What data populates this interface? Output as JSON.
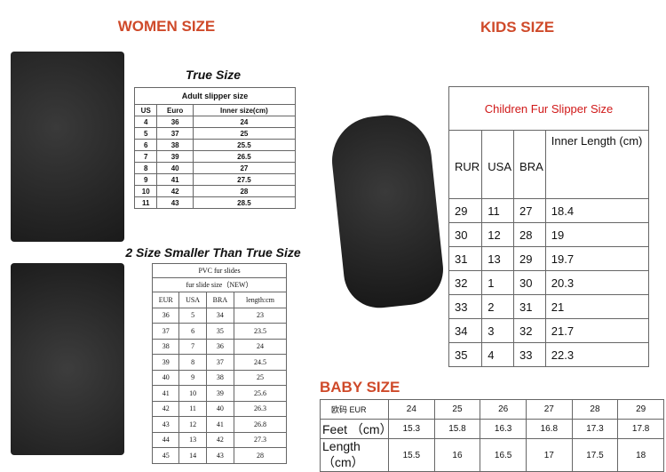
{
  "women": {
    "title": "WOMEN SIZE",
    "true_size_label": "True Size",
    "smaller_label": "2 Size Smaller Than True Size",
    "adult_table": {
      "caption": "Adult slipper size",
      "headers": [
        "US",
        "Euro",
        "Inner size(cm)"
      ],
      "rows": [
        [
          "4",
          "36",
          "24"
        ],
        [
          "5",
          "37",
          "25"
        ],
        [
          "6",
          "38",
          "25.5"
        ],
        [
          "7",
          "39",
          "26.5"
        ],
        [
          "8",
          "40",
          "27"
        ],
        [
          "9",
          "41",
          "27.5"
        ],
        [
          "10",
          "42",
          "28"
        ],
        [
          "11",
          "43",
          "28.5"
        ]
      ]
    },
    "pvc_table": {
      "caption": "PVC fur slides",
      "subcaption": "fur slide size（NEW）",
      "headers": [
        "EUR",
        "USA",
        "BRA",
        "length:cm"
      ],
      "rows": [
        [
          "36",
          "5",
          "34",
          "23"
        ],
        [
          "37",
          "6",
          "35",
          "23.5"
        ],
        [
          "38",
          "7",
          "36",
          "24"
        ],
        [
          "39",
          "8",
          "37",
          "24.5"
        ],
        [
          "40",
          "9",
          "38",
          "25"
        ],
        [
          "41",
          "10",
          "39",
          "25.6"
        ],
        [
          "42",
          "11",
          "40",
          "26.3"
        ],
        [
          "43",
          "12",
          "41",
          "26.8"
        ],
        [
          "44",
          "13",
          "42",
          "27.3"
        ],
        [
          "45",
          "14",
          "43",
          "28"
        ]
      ]
    }
  },
  "kids": {
    "title": "KIDS SIZE",
    "table": {
      "caption": "Children Fur Slipper Size",
      "headers": [
        "RUR",
        "USA",
        "BRA",
        "Inner Length (cm)"
      ],
      "rows": [
        [
          "29",
          "11",
          "27",
          "18.4"
        ],
        [
          "30",
          "12",
          "28",
          "19"
        ],
        [
          "31",
          "13",
          "29",
          "19.7"
        ],
        [
          "32",
          "1",
          "30",
          "20.3"
        ],
        [
          "33",
          "2",
          "31",
          "21"
        ],
        [
          "34",
          "3",
          "32",
          "21.7"
        ],
        [
          "35",
          "4",
          "33",
          "22.3"
        ]
      ]
    }
  },
  "baby": {
    "title": "BABY SIZE",
    "table": {
      "rows": [
        [
          "欧码 EUR",
          "24",
          "25",
          "26",
          "27",
          "28",
          "29"
        ],
        [
          "Feet （cm）",
          "15.3",
          "15.8",
          "16.3",
          "16.8",
          "17.3",
          "17.8"
        ],
        [
          "Length（cm）",
          "15.5",
          "16",
          "16.5",
          "17",
          "17.5",
          "18"
        ]
      ]
    }
  },
  "colors": {
    "title": "#cf4a2a",
    "kids_caption": "#d01818"
  }
}
